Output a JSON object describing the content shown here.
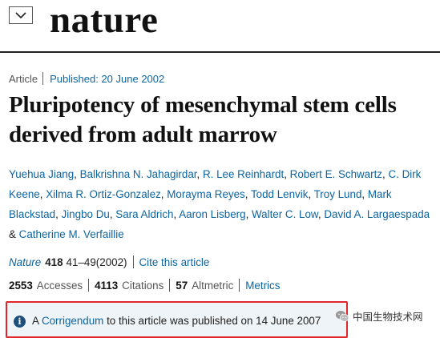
{
  "header": {
    "logo_text": "nature",
    "menu_icon": "chevron-down-icon"
  },
  "article": {
    "type": "Article",
    "published": "Published: 20 June 2002",
    "title": "Pluripotency of mesenchymal stem cells derived from adult marrow",
    "authors": [
      "Yuehua Jiang",
      "Balkrishna N. Jahagirdar",
      "R. Lee Reinhardt",
      "Robert E. Schwartz",
      "C. Dirk Keene",
      "Xilma R. Ortiz-Gonzalez",
      "Morayma Reyes",
      "Todd Lenvik",
      "Troy Lund",
      "Mark Blackstad",
      "Jingbo Du",
      "Sara Aldrich",
      "Aaron Lisberg",
      "Walter C. Low",
      "David A. Largaespada",
      "Catherine M. Verfaillie"
    ],
    "author_conjunction": "&",
    "citation": {
      "journal": "Nature",
      "volume": "418",
      "pages": "41–49(2002)",
      "cite_link": "Cite this article"
    },
    "metrics": {
      "accesses_count": "2553",
      "accesses_label": "Accesses",
      "citations_count": "4113",
      "citations_label": "Citations",
      "altmetric_count": "57",
      "altmetric_label": "Altmetric",
      "metrics_link": "Metrics"
    }
  },
  "notice": {
    "prefix": "A",
    "link": "Corrigendum",
    "suffix": "to this article was published on 14 June 2007",
    "icon": "info-icon"
  },
  "watermark": {
    "text": "中国生物技术网",
    "icon": "wechat-icon"
  },
  "colors": {
    "link": "#0c64a0",
    "highlight_border": "#e0252c",
    "notice_bg": "#eef4f8",
    "info_icon": "#1d4f7a"
  }
}
